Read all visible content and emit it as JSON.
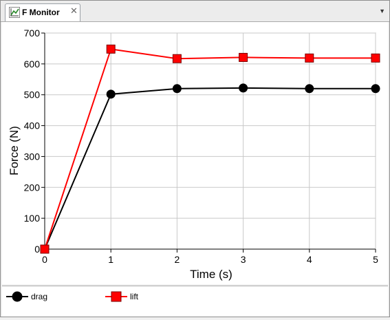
{
  "window": {
    "tab_title": "F Monitor",
    "tab_icon": "chart-icon",
    "close_icon": "close-icon",
    "menu_icon": "chevron-down-icon"
  },
  "chart_data": {
    "type": "line",
    "xlabel": "Time (s)",
    "ylabel": "Force (N)",
    "xlim": [
      0,
      5
    ],
    "ylim": [
      0,
      700
    ],
    "xticks": [
      0,
      1,
      2,
      3,
      4,
      5
    ],
    "yticks": [
      0,
      100,
      200,
      300,
      400,
      500,
      600,
      700
    ],
    "grid": true,
    "legend_position": "bottom",
    "series": [
      {
        "name": "drag",
        "color": "#000000",
        "marker": "circle",
        "x": [
          0,
          1,
          2,
          3,
          4,
          5
        ],
        "y": [
          0,
          502,
          520,
          522,
          520,
          520
        ]
      },
      {
        "name": "lift",
        "color": "#ff0000",
        "marker": "square",
        "x": [
          0,
          1,
          2,
          3,
          4,
          5
        ],
        "y": [
          0,
          648,
          617,
          621,
          619,
          619
        ]
      }
    ]
  }
}
